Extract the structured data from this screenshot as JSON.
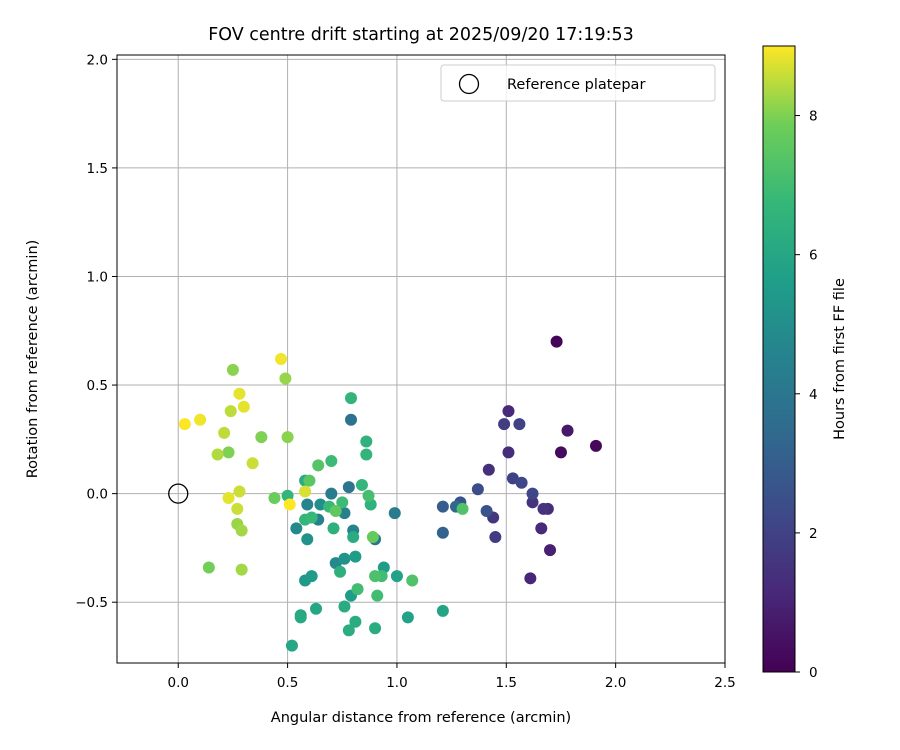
{
  "chart_data": {
    "type": "scatter",
    "title": "FOV centre drift starting at 2025/09/20 17:19:53",
    "xlabel": "Angular distance from reference (arcmin)",
    "ylabel": "Rotation from reference (arcmin)",
    "xlim": [
      -0.28,
      2.5
    ],
    "ylim": [
      -0.78,
      2.02
    ],
    "xticks": [
      0.0,
      0.5,
      1.0,
      1.5,
      2.0,
      2.5
    ],
    "xtick_labels": [
      "0.0",
      "0.5",
      "1.0",
      "1.5",
      "2.0",
      "2.5"
    ],
    "yticks": [
      -0.5,
      0.0,
      0.5,
      1.0,
      1.5,
      2.0
    ],
    "ytick_labels": [
      "−0.5",
      "0.0",
      "0.5",
      "1.0",
      "1.5",
      "2.0"
    ],
    "grid": true,
    "legend": {
      "position": "top-right",
      "label": "Reference platepar"
    },
    "reference_point": {
      "x": 0.0,
      "y": 0.0
    },
    "colorbar": {
      "label": "Hours from first FF file",
      "colormap": "viridis",
      "range": [
        0,
        9
      ],
      "ticks": [
        0,
        2,
        4,
        6,
        8
      ],
      "tick_labels": [
        "0",
        "2",
        "4",
        "6",
        "8"
      ]
    },
    "points": [
      {
        "x": 1.73,
        "y": 0.7,
        "h": 0.1
      },
      {
        "x": 1.91,
        "y": 0.22,
        "h": 0.2
      },
      {
        "x": 1.75,
        "y": 0.19,
        "h": 0.3
      },
      {
        "x": 1.78,
        "y": 0.29,
        "h": 0.7
      },
      {
        "x": 1.7,
        "y": -0.26,
        "h": 0.9
      },
      {
        "x": 1.61,
        "y": -0.39,
        "h": 1.1
      },
      {
        "x": 1.66,
        "y": -0.16,
        "h": 1.2
      },
      {
        "x": 1.69,
        "y": -0.07,
        "h": 1.3
      },
      {
        "x": 1.51,
        "y": 0.38,
        "h": 1.2
      },
      {
        "x": 1.51,
        "y": 0.19,
        "h": 1.3
      },
      {
        "x": 1.42,
        "y": 0.11,
        "h": 1.4
      },
      {
        "x": 1.62,
        "y": -0.04,
        "h": 1.5
      },
      {
        "x": 1.67,
        "y": -0.07,
        "h": 1.5
      },
      {
        "x": 1.44,
        "y": -0.11,
        "h": 1.6
      },
      {
        "x": 1.45,
        "y": -0.2,
        "h": 1.8
      },
      {
        "x": 1.49,
        "y": 0.32,
        "h": 1.8
      },
      {
        "x": 1.56,
        "y": 0.32,
        "h": 2.0
      },
      {
        "x": 1.53,
        "y": 0.07,
        "h": 2.0
      },
      {
        "x": 1.57,
        "y": 0.05,
        "h": 2.2
      },
      {
        "x": 1.62,
        "y": 0.0,
        "h": 2.2
      },
      {
        "x": 1.37,
        "y": 0.02,
        "h": 2.4
      },
      {
        "x": 1.29,
        "y": -0.04,
        "h": 2.6
      },
      {
        "x": 1.41,
        "y": -0.08,
        "h": 2.6
      },
      {
        "x": 1.21,
        "y": -0.06,
        "h": 3.0
      },
      {
        "x": 1.21,
        "y": -0.18,
        "h": 3.2
      },
      {
        "x": 1.27,
        "y": -0.06,
        "h": 3.4
      },
      {
        "x": 0.79,
        "y": 0.34,
        "h": 3.8
      },
      {
        "x": 0.99,
        "y": -0.09,
        "h": 4.2
      },
      {
        "x": 0.78,
        "y": 0.03,
        "h": 4.0
      },
      {
        "x": 0.9,
        "y": -0.21,
        "h": 4.0
      },
      {
        "x": 0.7,
        "y": 0.0,
        "h": 4.2
      },
      {
        "x": 0.76,
        "y": -0.09,
        "h": 4.4
      },
      {
        "x": 0.64,
        "y": -0.12,
        "h": 4.4
      },
      {
        "x": 0.8,
        "y": -0.17,
        "h": 4.5
      },
      {
        "x": 0.59,
        "y": -0.05,
        "h": 4.6
      },
      {
        "x": 0.54,
        "y": -0.16,
        "h": 4.8
      },
      {
        "x": 0.72,
        "y": -0.32,
        "h": 4.8
      },
      {
        "x": 0.65,
        "y": -0.05,
        "h": 5.0
      },
      {
        "x": 0.59,
        "y": -0.21,
        "h": 5.2
      },
      {
        "x": 0.76,
        "y": -0.3,
        "h": 5.2
      },
      {
        "x": 0.58,
        "y": -0.4,
        "h": 5.4
      },
      {
        "x": 0.61,
        "y": -0.38,
        "h": 5.5
      },
      {
        "x": 0.79,
        "y": -0.47,
        "h": 5.6
      },
      {
        "x": 0.81,
        "y": -0.29,
        "h": 5.6
      },
      {
        "x": 0.94,
        "y": -0.34,
        "h": 5.6
      },
      {
        "x": 1.0,
        "y": -0.38,
        "h": 5.8
      },
      {
        "x": 1.05,
        "y": -0.57,
        "h": 5.8
      },
      {
        "x": 1.21,
        "y": -0.54,
        "h": 5.9
      },
      {
        "x": 0.63,
        "y": -0.53,
        "h": 6.0
      },
      {
        "x": 0.56,
        "y": -0.56,
        "h": 6.0
      },
      {
        "x": 0.56,
        "y": -0.57,
        "h": 6.1
      },
      {
        "x": 0.52,
        "y": -0.7,
        "h": 6.0
      },
      {
        "x": 0.76,
        "y": -0.52,
        "h": 6.2
      },
      {
        "x": 0.81,
        "y": -0.59,
        "h": 6.2
      },
      {
        "x": 0.9,
        "y": -0.62,
        "h": 6.2
      },
      {
        "x": 0.78,
        "y": -0.63,
        "h": 6.3
      },
      {
        "x": 0.8,
        "y": -0.2,
        "h": 6.2
      },
      {
        "x": 0.58,
        "y": 0.06,
        "h": 6.3
      },
      {
        "x": 0.71,
        "y": -0.16,
        "h": 6.4
      },
      {
        "x": 0.74,
        "y": -0.36,
        "h": 6.4
      },
      {
        "x": 0.88,
        "y": -0.05,
        "h": 6.5
      },
      {
        "x": 0.86,
        "y": 0.24,
        "h": 6.5
      },
      {
        "x": 0.86,
        "y": 0.18,
        "h": 6.6
      },
      {
        "x": 0.79,
        "y": 0.44,
        "h": 6.6
      },
      {
        "x": 0.84,
        "y": 0.04,
        "h": 6.7
      },
      {
        "x": 0.5,
        "y": -0.01,
        "h": 6.6
      },
      {
        "x": 0.58,
        "y": -0.12,
        "h": 6.7
      },
      {
        "x": 0.61,
        "y": -0.11,
        "h": 6.8
      },
      {
        "x": 0.69,
        "y": -0.06,
        "h": 6.8
      },
      {
        "x": 0.7,
        "y": 0.15,
        "h": 6.9
      },
      {
        "x": 0.75,
        "y": -0.04,
        "h": 6.9
      },
      {
        "x": 0.82,
        "y": -0.44,
        "h": 7.0
      },
      {
        "x": 0.91,
        "y": -0.47,
        "h": 7.0
      },
      {
        "x": 0.93,
        "y": -0.38,
        "h": 7.0
      },
      {
        "x": 0.87,
        "y": -0.01,
        "h": 7.1
      },
      {
        "x": 0.9,
        "y": -0.38,
        "h": 7.2
      },
      {
        "x": 1.07,
        "y": -0.4,
        "h": 7.3
      },
      {
        "x": 1.3,
        "y": -0.07,
        "h": 7.3
      },
      {
        "x": 0.64,
        "y": 0.13,
        "h": 7.4
      },
      {
        "x": 0.6,
        "y": 0.06,
        "h": 7.5
      },
      {
        "x": 0.72,
        "y": -0.08,
        "h": 7.6
      },
      {
        "x": 0.89,
        "y": -0.2,
        "h": 7.7
      },
      {
        "x": 0.44,
        "y": -0.02,
        "h": 7.8
      },
      {
        "x": 0.14,
        "y": -0.34,
        "h": 7.9
      },
      {
        "x": 0.23,
        "y": 0.19,
        "h": 8.0
      },
      {
        "x": 0.38,
        "y": 0.26,
        "h": 8.0
      },
      {
        "x": 0.5,
        "y": 0.26,
        "h": 8.1
      },
      {
        "x": 0.25,
        "y": 0.57,
        "h": 8.1
      },
      {
        "x": 0.49,
        "y": 0.53,
        "h": 8.2
      },
      {
        "x": 0.27,
        "y": -0.14,
        "h": 8.2
      },
      {
        "x": 0.29,
        "y": -0.17,
        "h": 8.3
      },
      {
        "x": 0.29,
        "y": -0.35,
        "h": 8.3
      },
      {
        "x": 0.18,
        "y": 0.18,
        "h": 8.4
      },
      {
        "x": 0.21,
        "y": 0.28,
        "h": 8.5
      },
      {
        "x": 0.24,
        "y": 0.38,
        "h": 8.5
      },
      {
        "x": 0.27,
        "y": -0.07,
        "h": 8.6
      },
      {
        "x": 0.28,
        "y": 0.01,
        "h": 8.6
      },
      {
        "x": 0.34,
        "y": 0.14,
        "h": 8.6
      },
      {
        "x": 0.58,
        "y": 0.01,
        "h": 8.7
      },
      {
        "x": 0.23,
        "y": -0.02,
        "h": 8.8
      },
      {
        "x": 0.28,
        "y": 0.46,
        "h": 8.8
      },
      {
        "x": 0.3,
        "y": 0.4,
        "h": 8.8
      },
      {
        "x": 0.47,
        "y": 0.62,
        "h": 8.9
      },
      {
        "x": 0.1,
        "y": 0.34,
        "h": 8.9
      },
      {
        "x": 0.03,
        "y": 0.32,
        "h": 9.0
      },
      {
        "x": 0.51,
        "y": -0.05,
        "h": 9.0
      }
    ]
  }
}
